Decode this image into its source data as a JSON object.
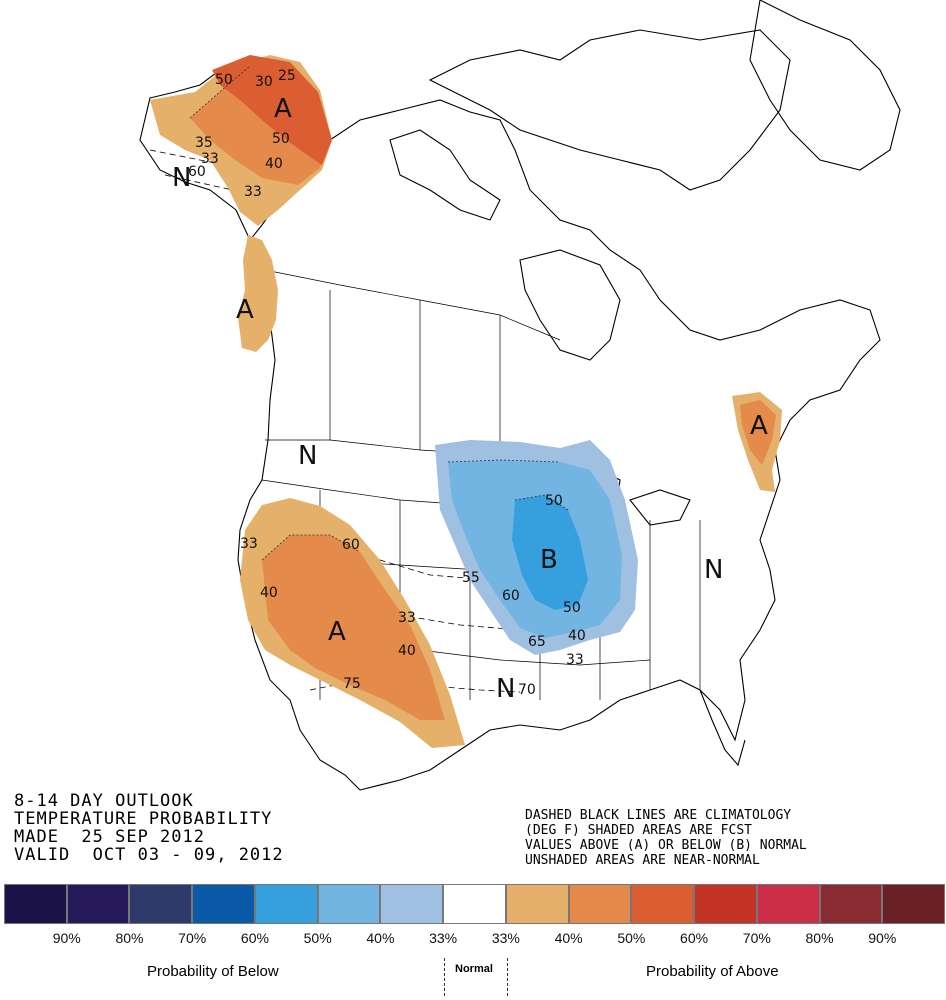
{
  "title": {
    "line1": "8-14 DAY OUTLOOK",
    "line2": "TEMPERATURE PROBABILITY",
    "line3": "MADE  25 SEP 2012",
    "line4": "VALID  OCT 03 - 09, 2012"
  },
  "notes": {
    "line1": "DASHED BLACK LINES ARE CLIMATOLOGY",
    "line2": "(DEG F) SHADED AREAS ARE FCST",
    "line3": "VALUES ABOVE (A) OR BELOW (B) NORMAL",
    "line4": "UNSHADED AREAS ARE NEAR-NORMAL"
  },
  "map_labels": {
    "above_ak": "A",
    "above_bc": "A",
    "above_sw": "A",
    "above_ne": "A",
    "below_mw": "B",
    "normal_ak": "N",
    "normal_nw": "N",
    "normal_east": "N",
    "normal_south": "N"
  },
  "contour_labels": {
    "ak_50a": "50",
    "ak_50b": "50",
    "ak_40": "40",
    "ak_35": "35",
    "ak_33a": "33",
    "ak_33b": "33",
    "ak_30": "30",
    "ak_25": "25",
    "ak_60": "60",
    "sw_33a": "33",
    "sw_40a": "40",
    "sw_33b": "33",
    "sw_40b": "40",
    "sw_75": "75",
    "sw_60": "60",
    "mw_50a": "50",
    "mw_50b": "50",
    "mw_40": "40",
    "mw_33": "33",
    "mw_55": "55",
    "mw_60": "60",
    "mw_65": "65",
    "mw_70": "70"
  },
  "legend": {
    "colors": [
      "#1c1449",
      "#261a5a",
      "#2d3a6a",
      "#0b5aa7",
      "#35a0dd",
      "#72b5e3",
      "#a0c0e2",
      "#ffffff",
      "#e5b069",
      "#e48a4b",
      "#db5e33",
      "#c43426",
      "#cc2e47",
      "#8a2a33",
      "#6a2126"
    ],
    "ticks": [
      "90%",
      "80%",
      "70%",
      "60%",
      "50%",
      "40%",
      "33%",
      "33%",
      "40%",
      "50%",
      "60%",
      "70%",
      "80%",
      "90%"
    ],
    "below_label": "Probability of Below",
    "normal_label": "Normal",
    "above_label": "Probability of Above"
  }
}
